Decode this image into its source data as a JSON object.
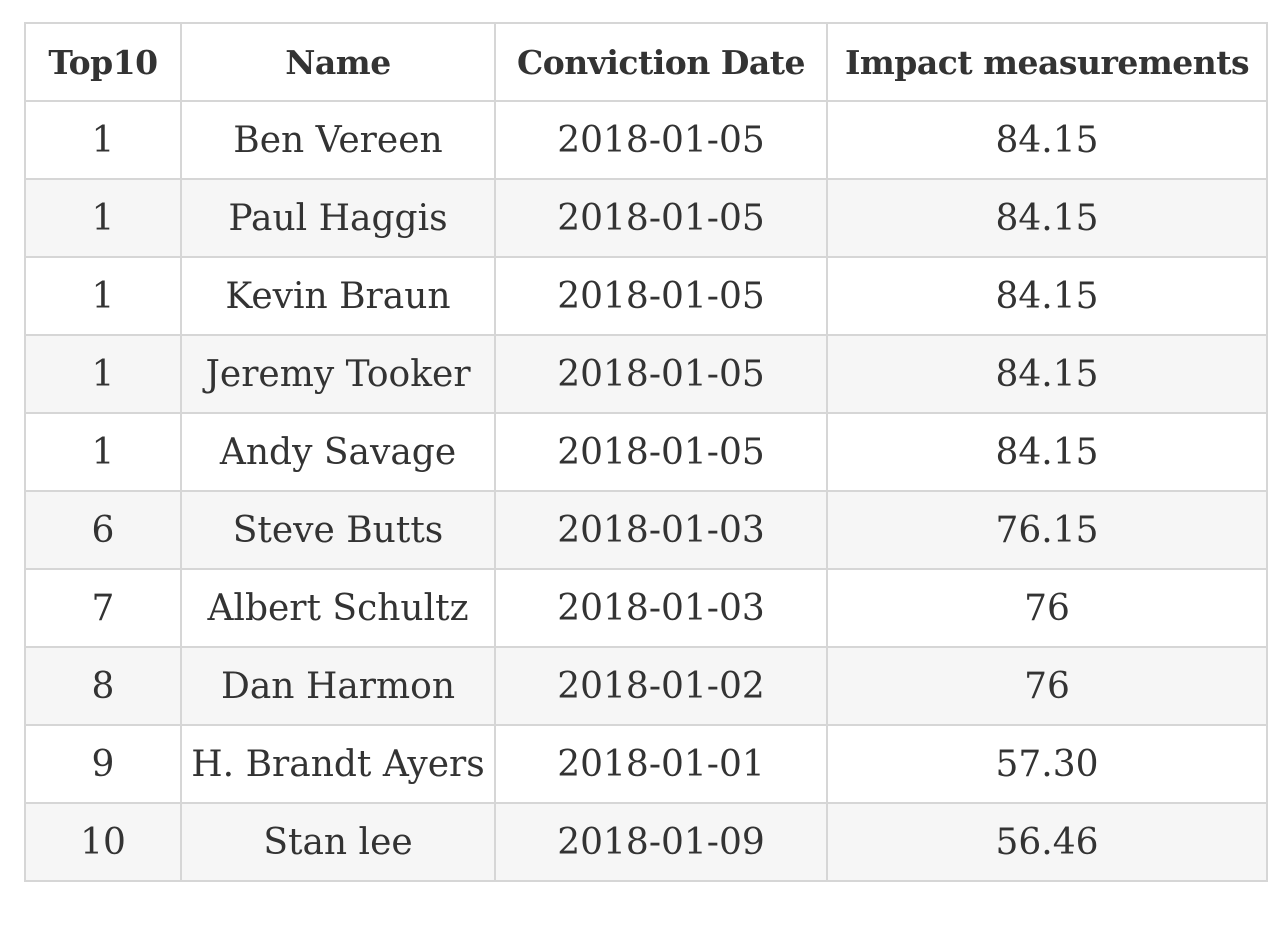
{
  "table": {
    "headers": [
      "Top10",
      "Name",
      "Conviction Date",
      "Impact measurements"
    ],
    "rows": [
      [
        "1",
        "Ben Vereen",
        "2018-01-05",
        "84.15"
      ],
      [
        "1",
        "Paul Haggis",
        "2018-01-05",
        "84.15"
      ],
      [
        "1",
        "Kevin Braun",
        "2018-01-05",
        "84.15"
      ],
      [
        "1",
        "Jeremy Tooker",
        "2018-01-05",
        "84.15"
      ],
      [
        "1",
        "Andy Savage",
        "2018-01-05",
        "84.15"
      ],
      [
        "6",
        "Steve Butts",
        "2018-01-03",
        "76.15"
      ],
      [
        "7",
        "Albert Schultz",
        "2018-01-03",
        "76"
      ],
      [
        "8",
        "Dan Harmon",
        "2018-01-02",
        "76"
      ],
      [
        "9",
        "H. Brandt Ayers",
        "2018-01-01",
        "57.30"
      ],
      [
        "10",
        "Stan lee",
        "2018-01-09",
        "56.46"
      ]
    ]
  }
}
